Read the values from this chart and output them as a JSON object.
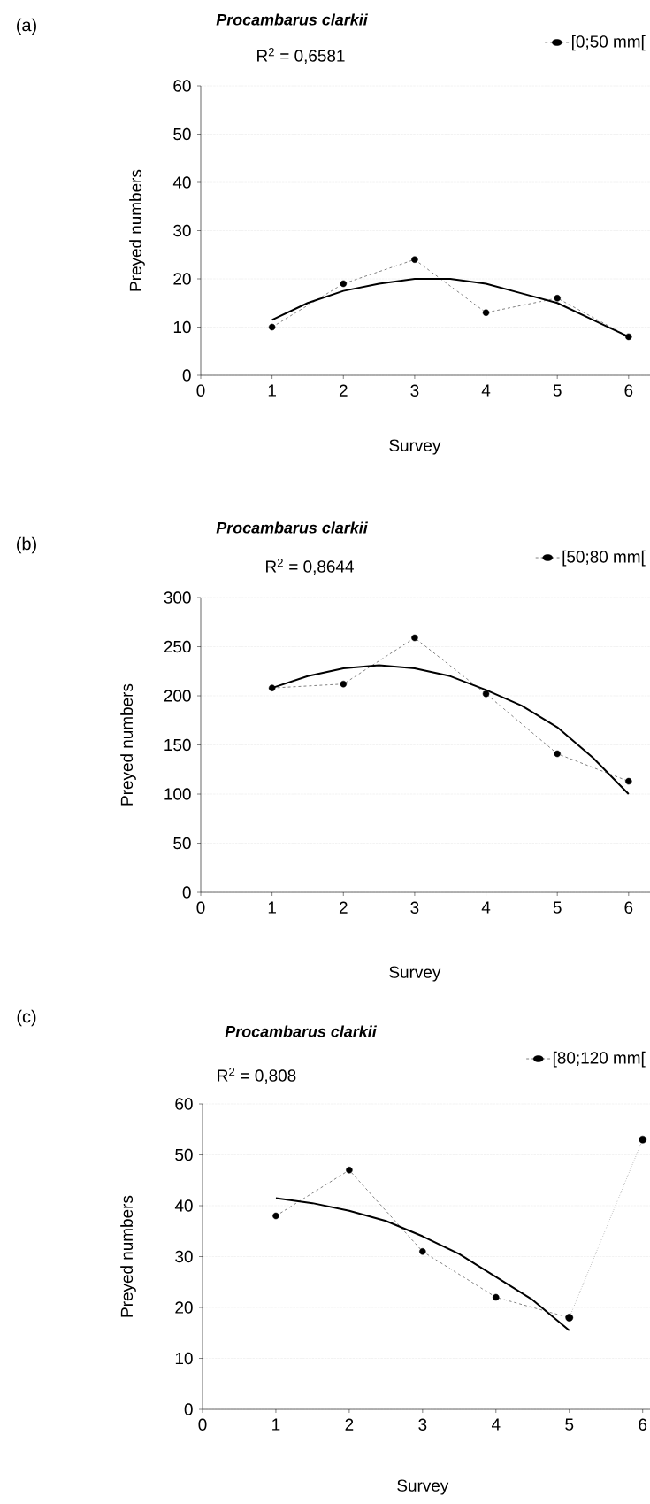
{
  "chart_data": [
    {
      "type": "line",
      "title": "Procambarus clarkii",
      "xlabel": "Survey",
      "ylabel": "Preyed numbers",
      "annotations": [
        "(a)",
        "R$^{2}$ = 0,6581"
      ],
      "xlim": [
        0,
        6.3
      ],
      "xticks": [
        0,
        1,
        2,
        3,
        4,
        5,
        6
      ],
      "ylim": [
        0,
        60
      ],
      "yticks": [
        0,
        10,
        20,
        30,
        40,
        50,
        60
      ],
      "grid": "y",
      "legend": "top right",
      "series": [
        {
          "name": "[0;50 mm[",
          "color": "#000000",
          "x": [
            1,
            2,
            3,
            4,
            5,
            6
          ],
          "values": [
            10,
            19,
            24,
            13,
            16,
            8
          ],
          "marker": "circle",
          "line_style": "dashed"
        },
        {
          "type": "line",
          "color": "#000000",
          "x": [
            1,
            1.5,
            2,
            2.5,
            3,
            3.5,
            4,
            4.5,
            5,
            5.5,
            6
          ],
          "values": [
            11.5,
            15,
            17.5,
            19,
            20,
            20,
            19,
            17,
            15,
            11.5,
            8
          ],
          "marker": "none",
          "line_style": "solid"
        }
      ]
    },
    {
      "type": "line",
      "title": "Procambarus clarkii",
      "xlabel": "Survey",
      "ylabel": "Preyed numbers",
      "annotations": [
        "(b)",
        "R$^{2}$ = 0,8644"
      ],
      "xlim": [
        0,
        6.3
      ],
      "xticks": [
        0,
        1,
        2,
        3,
        4,
        5,
        6
      ],
      "ylim": [
        0,
        300
      ],
      "yticks": [
        0,
        50,
        100,
        150,
        200,
        250,
        300
      ],
      "grid": "y",
      "legend": "top right",
      "series": [
        {
          "name": "[50;80 mm[",
          "color": "#000000",
          "x": [
            1,
            2,
            3,
            4,
            5,
            6
          ],
          "values": [
            208,
            212,
            259,
            202,
            141,
            113
          ],
          "marker": "circle",
          "line_style": "dashed"
        },
        {
          "type": "line",
          "color": "#000000",
          "x": [
            1,
            1.5,
            2,
            2.5,
            3,
            3.5,
            4,
            4.5,
            5,
            5.5,
            6
          ],
          "values": [
            208,
            220,
            228,
            231,
            228,
            220,
            206,
            190,
            168,
            137,
            100
          ],
          "marker": "none",
          "line_style": "solid"
        }
      ]
    },
    {
      "type": "line",
      "title": "Procambarus clarkii",
      "xlabel": "Survey",
      "ylabel": "Preyed numbers",
      "annotations": [
        "(c)",
        "R$^{2}$ = 0,808"
      ],
      "xlim": [
        0,
        6.1
      ],
      "xticks": [
        0,
        1,
        2,
        3,
        4,
        5,
        6
      ],
      "ylim": [
        0,
        60
      ],
      "yticks": [
        0,
        10,
        20,
        30,
        40,
        50,
        60
      ],
      "grid": "y",
      "legend": "top right",
      "series": [
        {
          "name": "[80;120 mm[",
          "color": "#000000",
          "x": [
            1,
            2,
            3,
            4,
            5
          ],
          "values": [
            38,
            47,
            31,
            22,
            18
          ],
          "marker": "circle",
          "line_style": "dashed"
        },
        {
          "type": "line",
          "color": "#000000",
          "x": [
            5,
            6
          ],
          "values": [
            18,
            53
          ],
          "marker": "circle",
          "line_style": "dotted"
        },
        {
          "type": "line",
          "color": "#000000",
          "x": [
            1,
            1.5,
            2,
            2.5,
            3,
            3.5,
            4,
            4.5,
            5
          ],
          "values": [
            41.5,
            40.5,
            39,
            37,
            34,
            30.5,
            26,
            21.5,
            15.5
          ],
          "marker": "none",
          "line_style": "solid"
        }
      ]
    }
  ]
}
